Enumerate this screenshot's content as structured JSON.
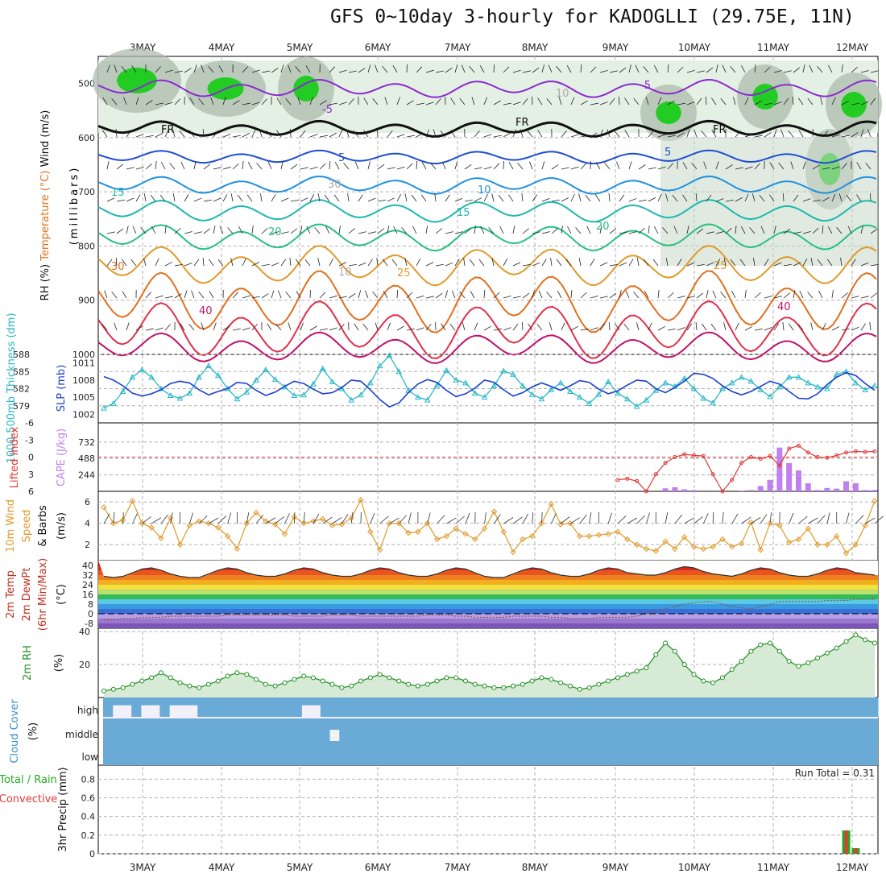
{
  "title": "GFS 0~10day 3-hourly for KADOGLLI (29.75E, 11N)",
  "date_labels": [
    "3MAY",
    "4MAY",
    "5MAY",
    "6MAY",
    "7MAY",
    "8MAY",
    "9MAY",
    "10MAY",
    "11MAY",
    "12MAY"
  ],
  "colors": {
    "grid": "#b0b0b0",
    "rh_green": "#22cc22",
    "rh_dark": "#aab8aa",
    "fr_line": "#111111",
    "thickness": "#2ab7c8",
    "slp": "#1a3fcc",
    "lifted_index": "#e03a3a",
    "cape": "#c080f0",
    "wind_speed": "#e09a2a",
    "rh2m": "#1f8f1f",
    "rh2m_fill": "#d6ead6",
    "cloud": "#6aaad6",
    "cloud_bg": "#f2f0f8",
    "precip_total": "#22aa22",
    "precip_conv": "#e03a3a"
  },
  "panels": {
    "upper": {
      "axis_label": "(millibars)",
      "side_labels": [
        "RH (%)",
        "Temperature (°C)",
        "Wind (m/s)"
      ],
      "ticks": [
        "500",
        "600",
        "700",
        "800",
        "900",
        "1000"
      ],
      "contour_labels": [
        "-5",
        "-5",
        "FR",
        "FR",
        "FR",
        "5",
        "5",
        "10",
        "15",
        "15",
        "20",
        "20",
        "25",
        "25",
        "30",
        "10",
        "10",
        "30",
        "40",
        "40"
      ]
    },
    "thickness": {
      "left_label": "1000-500mb Thickness (dm)",
      "right_label": "SLP (mb)",
      "left_ticks": [
        "588",
        "585",
        "582",
        "579"
      ],
      "right_ticks": [
        "1011",
        "1008",
        "1005",
        "1002"
      ]
    },
    "cape": {
      "left_label": "Lifted Index",
      "right_label": "CAPE (J/kg)",
      "left_ticks": [
        "-6",
        "-3",
        "0",
        "3",
        "6"
      ],
      "right_ticks": [
        "732",
        "488",
        "244"
      ]
    },
    "wind": {
      "label_1": "10m Wind",
      "label_2": "Speed",
      "label_3": "& Barbs",
      "unit": "(m/s)",
      "ticks": [
        "6",
        "4",
        "2"
      ]
    },
    "temp": {
      "label_1": "2m Temp",
      "label_2": "2m DewPt",
      "label_3": "(6hr Min/Max)",
      "unit": "(°C)",
      "ticks": [
        "40",
        "32",
        "24",
        "16",
        "8",
        "0",
        "-8"
      ]
    },
    "rh": {
      "label": "2m RH",
      "unit": "(%)",
      "ticks": [
        "40",
        "20"
      ]
    },
    "cloud": {
      "label": "Cloud Cover",
      "unit": "(%)",
      "ticks": [
        "high",
        "middle",
        "low"
      ]
    },
    "precip": {
      "label_total": "Total / Rain",
      "label_conv": "Convective",
      "label_axis": "3hr Precip (mm)",
      "ticks": [
        "0.8",
        "0.6",
        "0.4",
        "0.2",
        "0"
      ],
      "run_total": "Run Total = 0.31"
    }
  },
  "chart_data": {
    "type": "meteogram",
    "x_dates": [
      "3MAY",
      "4MAY",
      "5MAY",
      "6MAY",
      "7MAY",
      "8MAY",
      "9MAY",
      "10MAY",
      "11MAY",
      "12MAY"
    ],
    "steps_per_day": 8,
    "thickness_dm": [
      578.6,
      579.4,
      581.5,
      584.0,
      585.3,
      584.0,
      582.0,
      580.8,
      580.3,
      581.2,
      584.0,
      586.0,
      584.3,
      582.0,
      580.2,
      581.4,
      583.5,
      585.3,
      583.6,
      582.3,
      580.8,
      580.9,
      582.8,
      585.5,
      583.2,
      582.0,
      580.0,
      580.9,
      583.0,
      586.0,
      587.8,
      585.0,
      581.7,
      580.5,
      580.0,
      582.6,
      585.2,
      583.5,
      583.0,
      581.2,
      580.5,
      582.5,
      585.1,
      584.5,
      582.5,
      581.0,
      580.2,
      581.8,
      583.0,
      581.5,
      580.5,
      579.4,
      581.0,
      583.2,
      581.2,
      580.2,
      578.9,
      580.0,
      581.7,
      583.0,
      582.4,
      583.8,
      582.0,
      580.3,
      579.5,
      582.0,
      583.0,
      584.0,
      583.3,
      581.8,
      580.6,
      582.3,
      584.0,
      584.0,
      583.0,
      582.3,
      582.0,
      584.5,
      585.0,
      583.0,
      581.8,
      582.5
    ],
    "slp_mb": [
      1008.6,
      1008.0,
      1007.0,
      1005.7,
      1005.2,
      1005.6,
      1006.3,
      1007.4,
      1007.8,
      1007.5,
      1006.3,
      1005.4,
      1006.0,
      1006.5,
      1007.6,
      1007.4,
      1006.2,
      1005.3,
      1005.9,
      1006.9,
      1007.8,
      1007.4,
      1006.4,
      1005.6,
      1005.8,
      1006.7,
      1008.0,
      1007.8,
      1006.3,
      1004.6,
      1003.3,
      1004.0,
      1005.8,
      1007.3,
      1008.1,
      1007.6,
      1006.2,
      1005.1,
      1005.6,
      1006.6,
      1008.0,
      1007.6,
      1006.3,
      1005.2,
      1005.8,
      1006.8,
      1007.5,
      1006.9,
      1006.2,
      1007.0,
      1007.9,
      1007.6,
      1006.4,
      1005.6,
      1006.1,
      1007.1,
      1008.0,
      1007.8,
      1006.5,
      1005.8,
      1006.7,
      1007.8,
      1009.2,
      1009.0,
      1008.3,
      1007.0,
      1006.0,
      1005.4,
      1006.0,
      1006.9,
      1007.8,
      1007.3,
      1006.0,
      1004.8,
      1004.7,
      1005.6,
      1007.2,
      1008.5,
      1009.3,
      1008.8,
      1007.4,
      1006.2
    ],
    "lifted_index": [
      null,
      null,
      null,
      null,
      null,
      null,
      null,
      null,
      null,
      null,
      null,
      null,
      null,
      null,
      null,
      null,
      null,
      null,
      null,
      null,
      null,
      null,
      null,
      null,
      null,
      null,
      null,
      null,
      null,
      null,
      null,
      null,
      null,
      null,
      null,
      null,
      null,
      null,
      null,
      null,
      null,
      null,
      null,
      null,
      null,
      null,
      null,
      null,
      null,
      null,
      null,
      null,
      null,
      null,
      4.0,
      3.8,
      4.2,
      6.0,
      3.0,
      1.0,
      0.0,
      -0.5,
      -0.3,
      -0.2,
      3.0,
      6.0,
      4.0,
      1.0,
      0.0,
      0.3,
      -0.2,
      1.5,
      -1.5,
      -2.0,
      -0.8,
      0.0,
      0.1,
      -0.3,
      -0.8,
      -1.0,
      -0.9,
      -1.0
    ],
    "cape_jkg": [
      0,
      0,
      0,
      0,
      0,
      0,
      0,
      0,
      0,
      0,
      0,
      0,
      0,
      0,
      0,
      0,
      0,
      0,
      0,
      0,
      0,
      0,
      0,
      0,
      0,
      0,
      0,
      0,
      0,
      0,
      0,
      0,
      0,
      0,
      0,
      0,
      0,
      0,
      0,
      0,
      0,
      0,
      0,
      0,
      0,
      0,
      0,
      0,
      0,
      0,
      0,
      0,
      0,
      0,
      0,
      0,
      0,
      0,
      0,
      45,
      60,
      30,
      20,
      0,
      0,
      0,
      0,
      10,
      20,
      80,
      170,
      650,
      420,
      310,
      120,
      20,
      50,
      40,
      150,
      120,
      20,
      20
    ],
    "wind_speed_ms": [
      5.5,
      4.0,
      4.3,
      6.1,
      4.0,
      3.6,
      2.6,
      4.5,
      2.0,
      3.8,
      4.2,
      4.0,
      3.6,
      2.8,
      1.6,
      4.0,
      5.0,
      4.2,
      3.9,
      3.0,
      4.6,
      4.0,
      4.2,
      4.4,
      3.8,
      3.9,
      4.5,
      6.2,
      3.2,
      1.5,
      4.0,
      4.0,
      3.1,
      3.2,
      4.0,
      2.5,
      2.8,
      3.5,
      3.0,
      2.5,
      3.5,
      5.1,
      3.2,
      1.3,
      2.5,
      2.8,
      4.0,
      5.8,
      3.9,
      4.0,
      2.8,
      2.8,
      2.9,
      3.0,
      3.2,
      2.5,
      2.0,
      1.6,
      1.4,
      2.3,
      1.6,
      2.7,
      1.8,
      1.6,
      1.8,
      2.5,
      1.8,
      2.1,
      4.1,
      1.5,
      4.0,
      3.8,
      2.2,
      2.5,
      3.5,
      2.0,
      2.0,
      2.8,
      1.2,
      2.0,
      3.8,
      6.1
    ],
    "temp2m_c": [
      31,
      30,
      31,
      34,
      37,
      38,
      36,
      33,
      31,
      30,
      30,
      33,
      36,
      38,
      37,
      34,
      32,
      31,
      31,
      33,
      36,
      38,
      37,
      34,
      32,
      31,
      31,
      33,
      36,
      38,
      37,
      34,
      32,
      31,
      31,
      33,
      36,
      38,
      37,
      34,
      31,
      30,
      30,
      33,
      36,
      38,
      37,
      34,
      32,
      31,
      31,
      33,
      36,
      38,
      37,
      34,
      33,
      32,
      32,
      34,
      37,
      39,
      38,
      35,
      33,
      32,
      31,
      33,
      36,
      38,
      37,
      34,
      32,
      31,
      31,
      33,
      36,
      38,
      37,
      34,
      33,
      32
    ],
    "dewpt2m_c": [
      -5,
      -5,
      -4,
      -4,
      -3,
      -3,
      -3,
      -2,
      -2,
      -2,
      -2,
      -2,
      -2,
      -1,
      -1,
      -1,
      -1,
      -1,
      -1,
      -1,
      -2,
      -2,
      -2,
      -2,
      -1,
      -1,
      -1,
      -2,
      -2,
      -2,
      -2,
      -2,
      -2,
      -2,
      -1,
      -1,
      -1,
      -2,
      -2,
      -3,
      -3,
      -3,
      -3,
      -2,
      -2,
      -2,
      -2,
      -3,
      -3,
      -4,
      -4,
      -4,
      -3,
      -3,
      -3,
      -3,
      -2,
      0,
      2,
      4,
      6,
      8,
      9,
      10,
      10,
      8,
      6,
      5,
      4,
      6,
      8,
      10,
      10,
      10,
      10,
      10,
      11,
      11,
      11,
      12,
      12,
      12
    ],
    "rh2m_pct": [
      4,
      5,
      6,
      8,
      10,
      12,
      15,
      12,
      9,
      7,
      6,
      8,
      10,
      13,
      15,
      14,
      11,
      8,
      7,
      9,
      11,
      13,
      12,
      10,
      8,
      6,
      7,
      10,
      12,
      14,
      12,
      10,
      8,
      7,
      8,
      10,
      12,
      12,
      10,
      8,
      7,
      6,
      6,
      7,
      8,
      10,
      12,
      11,
      9,
      7,
      5,
      6,
      8,
      10,
      12,
      14,
      16,
      18,
      26,
      33,
      28,
      20,
      14,
      10,
      9,
      12,
      17,
      22,
      28,
      32,
      33,
      28,
      22,
      19,
      21,
      24,
      27,
      30,
      34,
      38,
      35,
      33
    ],
    "precip_mm": [
      0,
      0,
      0,
      0,
      0,
      0,
      0,
      0,
      0,
      0,
      0,
      0,
      0,
      0,
      0,
      0,
      0,
      0,
      0,
      0,
      0,
      0,
      0,
      0,
      0,
      0,
      0,
      0,
      0,
      0,
      0,
      0,
      0,
      0,
      0,
      0,
      0,
      0,
      0,
      0,
      0,
      0,
      0,
      0,
      0,
      0,
      0,
      0,
      0,
      0,
      0,
      0,
      0,
      0,
      0,
      0,
      0,
      0,
      0,
      0,
      0,
      0,
      0,
      0,
      0,
      0,
      0,
      0,
      0,
      0,
      0,
      0,
      0,
      0,
      0,
      0,
      0,
      0,
      0.25,
      0.06,
      0,
      0
    ],
    "precip_conv_mm": [
      0,
      0,
      0,
      0,
      0,
      0,
      0,
      0,
      0,
      0,
      0,
      0,
      0,
      0,
      0,
      0,
      0,
      0,
      0,
      0,
      0,
      0,
      0,
      0,
      0,
      0,
      0,
      0,
      0,
      0,
      0,
      0,
      0,
      0,
      0,
      0,
      0,
      0,
      0,
      0,
      0,
      0,
      0,
      0,
      0,
      0,
      0,
      0,
      0,
      0,
      0,
      0,
      0,
      0,
      0,
      0,
      0,
      0,
      0,
      0,
      0,
      0,
      0,
      0,
      0,
      0,
      0,
      0,
      0,
      0,
      0,
      0,
      0,
      0,
      0,
      0,
      0,
      0,
      0.25,
      0.06,
      0,
      0
    ],
    "cloud_high_pct": [
      100,
      40,
      40,
      100,
      40,
      40,
      100,
      40,
      40,
      40,
      100,
      100,
      100,
      100,
      100,
      100,
      100,
      100,
      100,
      100,
      100,
      40,
      40,
      100,
      100,
      100,
      100,
      100,
      100,
      100,
      100,
      100,
      100,
      100,
      100,
      100,
      100,
      100,
      100,
      100,
      100,
      100,
      100,
      100,
      100,
      100,
      100,
      100,
      100,
      100,
      100,
      100,
      100,
      100,
      100,
      100,
      100,
      100,
      100,
      100,
      100,
      100,
      100,
      100,
      100,
      100,
      100,
      100,
      100,
      100,
      100,
      100,
      100,
      100,
      100,
      100,
      100,
      100,
      100,
      100,
      100,
      100
    ],
    "cloud_mid_pct": [
      0,
      10,
      10,
      10,
      10,
      10,
      10,
      10,
      10,
      10,
      10,
      10,
      10,
      10,
      10,
      10,
      10,
      10,
      10,
      10,
      10,
      10,
      10,
      10,
      15,
      10,
      10,
      10,
      10,
      10,
      10,
      10,
      10,
      10,
      10,
      10,
      10,
      10,
      10,
      10,
      10,
      10,
      10,
      10,
      10,
      10,
      10,
      10,
      10,
      10,
      10,
      10,
      10,
      10,
      10,
      10,
      10,
      10,
      10,
      10,
      10,
      10,
      10,
      10,
      10,
      10,
      10,
      10,
      10,
      10,
      10,
      10,
      10,
      10,
      10,
      10,
      10,
      10,
      10,
      10,
      10,
      10
    ]
  }
}
